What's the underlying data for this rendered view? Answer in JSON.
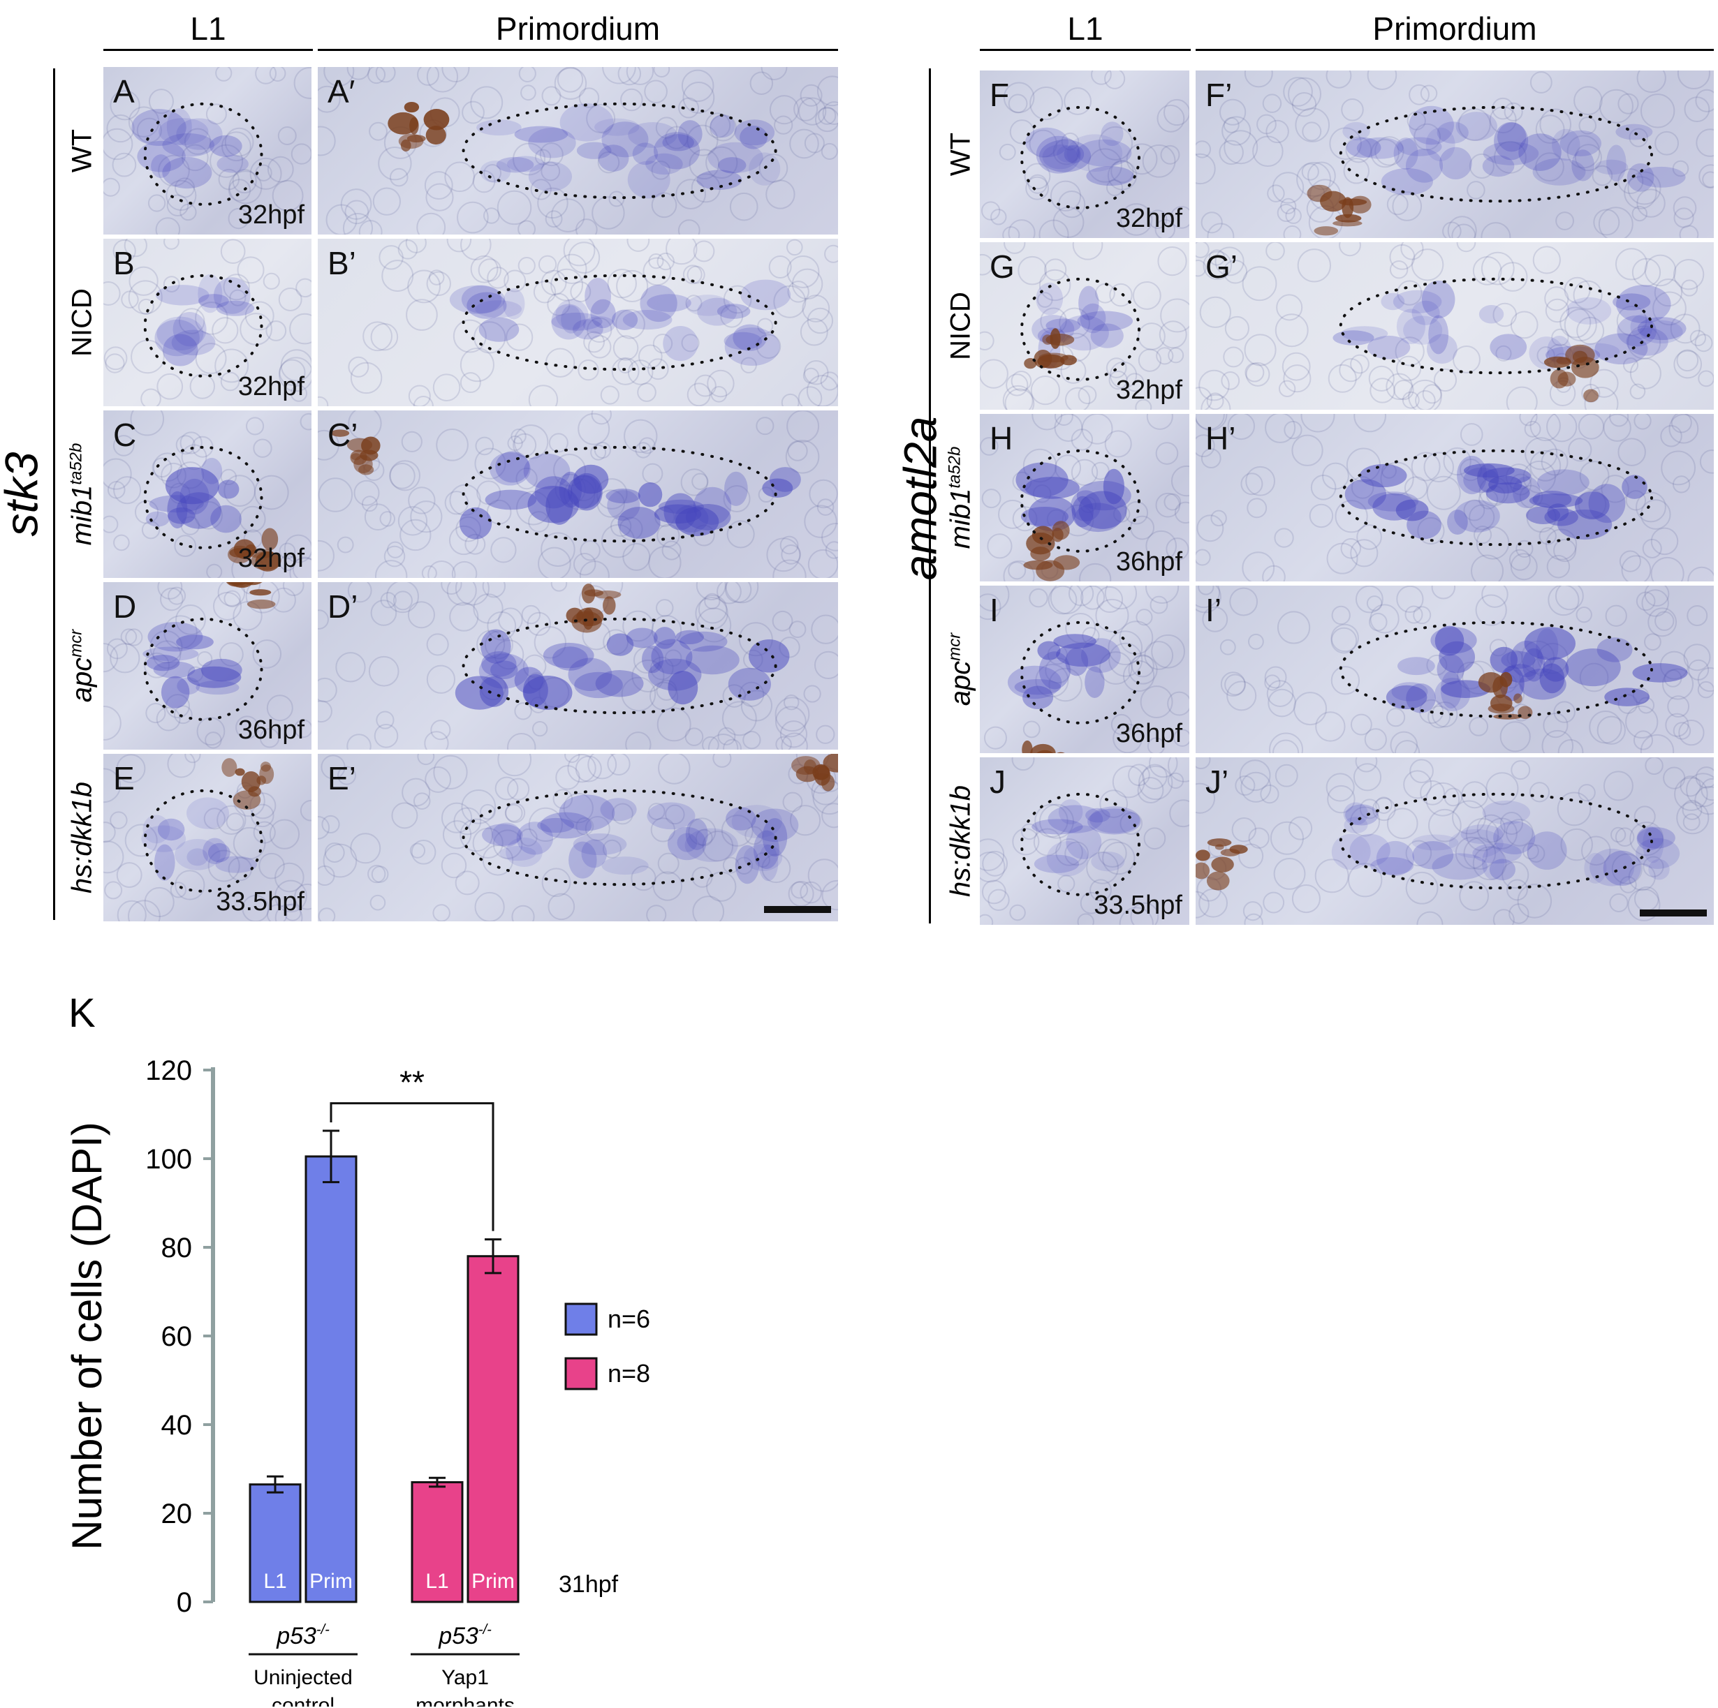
{
  "figure": {
    "column_headers": {
      "l1": "L1",
      "primordium": "Primordium"
    },
    "left_block": {
      "gene": "stk3",
      "rows": [
        {
          "label": "WT",
          "italic": false,
          "sup": "",
          "l1_letter": "A",
          "prim_letter": "A′",
          "age": "32hpf"
        },
        {
          "label": "NICD",
          "italic": false,
          "sup": "",
          "l1_letter": "B",
          "prim_letter": "B’",
          "age": "32hpf"
        },
        {
          "label": "mib1",
          "italic": true,
          "sup": "ta52b",
          "l1_letter": "C",
          "prim_letter": "C’",
          "age": "32hpf"
        },
        {
          "label": "apc",
          "italic": true,
          "sup": "mcr",
          "l1_letter": "D",
          "prim_letter": "D’",
          "age": "36hpf"
        },
        {
          "label": "hs:dkk1b",
          "italic": true,
          "sup": "",
          "l1_letter": "E",
          "prim_letter": "E’",
          "age": "33.5hpf"
        }
      ]
    },
    "right_block": {
      "gene": "amotl2a",
      "rows": [
        {
          "label": "WT",
          "italic": false,
          "sup": "",
          "l1_letter": "F",
          "prim_letter": "F’",
          "age": "32hpf"
        },
        {
          "label": "NICD",
          "italic": false,
          "sup": "",
          "l1_letter": "G",
          "prim_letter": "G’",
          "age": "32hpf"
        },
        {
          "label": "mib1",
          "italic": true,
          "sup": "ta52b",
          "l1_letter": "H",
          "prim_letter": "H’",
          "age": "36hpf"
        },
        {
          "label": "apc",
          "italic": true,
          "sup": "mcr",
          "l1_letter": "I",
          "prim_letter": "I’",
          "age": "36hpf"
        },
        {
          "label": "hs:dkk1b",
          "italic": true,
          "sup": "",
          "l1_letter": "J",
          "prim_letter": "J’",
          "age": "33.5hpf"
        }
      ]
    },
    "colors": {
      "stain_blue": "#5a5fc8",
      "pigment_brown": "#7a3e1c",
      "bar_blue": "#6f7fe8",
      "bar_pink": "#e8428a",
      "axis_gray": "#8fa0a0"
    }
  },
  "chart_data": {
    "type": "bar",
    "panel_letter": "K",
    "ylabel": "Number of cells (DAPI)",
    "ylim": [
      0,
      120
    ],
    "yticks": [
      0,
      20,
      40,
      60,
      80,
      100,
      120
    ],
    "groups": [
      {
        "genotype": "p53",
        "genotype_sup": "-/-",
        "condition_line1": "Uninjected",
        "condition_line2": "control",
        "bars": [
          {
            "label": "L1",
            "value": 26.5,
            "error": 1.8
          },
          {
            "label": "Prim",
            "value": 100.5,
            "error": 5.8
          }
        ],
        "legend": "n=6",
        "color": "#6f7fe8"
      },
      {
        "genotype": "p53",
        "genotype_sup": "-/-",
        "condition_line1": "Yap1",
        "condition_line2": "morphants",
        "bars": [
          {
            "label": "L1",
            "value": 27,
            "error": 1.0
          },
          {
            "label": "Prim",
            "value": 78,
            "error": 3.8
          }
        ],
        "legend": "n=8",
        "color": "#e8428a"
      }
    ],
    "significance": "**",
    "timepoint": "31hpf",
    "grid": false,
    "legend_position": "right"
  }
}
